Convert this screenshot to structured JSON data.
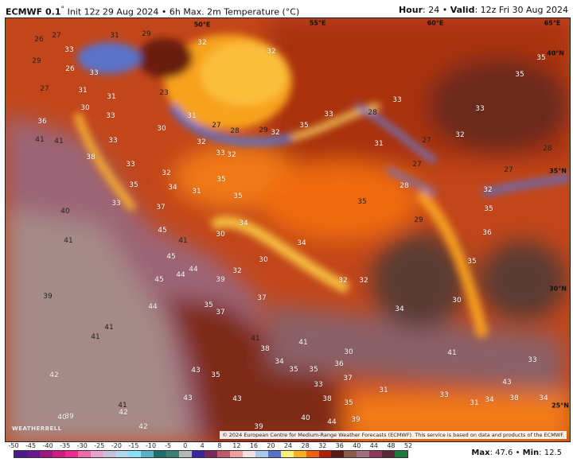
{
  "header": {
    "model": "ECMWF 0.1",
    "degree_mark": "°",
    "init": "Init 12z 29 Aug 2024",
    "separator": "•",
    "product": "6h Max. 2m Temperature (°C)",
    "hour_label": "Hour",
    "hour_value": ": 24",
    "valid_label": "Valid",
    "valid_value": ": 12z Fri 30 Aug 2024"
  },
  "map": {
    "graticule": [
      "50°E",
      "55°E",
      "60°E",
      "65°E",
      "40°N",
      "35°N",
      "30°N",
      "25°N"
    ],
    "temperature_labels": [
      "26",
      "27",
      "31",
      "29",
      "32",
      "32",
      "33",
      "29",
      "26",
      "33",
      "27",
      "23",
      "31",
      "31",
      "30",
      "33",
      "31",
      "36",
      "30",
      "27",
      "28",
      "29",
      "32",
      "41",
      "41",
      "33",
      "32",
      "38",
      "33",
      "33",
      "32",
      "32",
      "35",
      "34",
      "31",
      "35",
      "35",
      "33",
      "37",
      "40",
      "35",
      "35",
      "33",
      "33",
      "33",
      "28",
      "35",
      "31",
      "32",
      "27",
      "27",
      "28",
      "27",
      "32",
      "28",
      "35",
      "35",
      "29",
      "45",
      "41",
      "41",
      "45",
      "44",
      "44",
      "45",
      "39",
      "34",
      "30",
      "30",
      "32",
      "37",
      "39",
      "44",
      "35",
      "37",
      "41",
      "41",
      "41",
      "38",
      "34",
      "43",
      "35",
      "42",
      "43",
      "43",
      "41",
      "42",
      "40",
      "39",
      "42",
      "39",
      "36",
      "34",
      "35",
      "32",
      "32",
      "30",
      "34",
      "41",
      "41",
      "30",
      "36",
      "35",
      "35",
      "33",
      "33",
      "37",
      "43",
      "31",
      "33",
      "38",
      "35",
      "34",
      "31",
      "38",
      "34",
      "40",
      "44",
      "39"
    ],
    "copyright": "© 2024 European Centre for Medium-Range Weather Forecasts (ECMWF). This service is based on data and products of the ECMWF.",
    "logo": "WEATHERBELL",
    "region_colors": {
      "caspian": "#f7a21a",
      "plateau": "#e8561a",
      "hot_desert": "#9c6577",
      "gulf": "#7e2a16",
      "arabian_sea": "#f27c12",
      "cool_mountains": "#5a72c8",
      "northeast": "#a9300c"
    }
  },
  "colorbar": {
    "ticks": [
      "-50",
      "-45",
      "-40",
      "-35",
      "-30",
      "-25",
      "-20",
      "-15",
      "-10",
      "-5",
      "0",
      "4",
      "8",
      "12",
      "16",
      "20",
      "24",
      "28",
      "32",
      "36",
      "40",
      "44",
      "48",
      "52"
    ],
    "colors": [
      "#4b1a8c",
      "#6a1690",
      "#a2157f",
      "#d21a84",
      "#ee2a8e",
      "#f06aa8",
      "#e7a2cc",
      "#c8c0d8",
      "#b2d8ec",
      "#8ce0f4",
      "#5ab0c8",
      "#1f6e6a",
      "#3a7e74",
      "#b0b8b8",
      "#3a24a0",
      "#7a2a5a",
      "#c05a6a",
      "#e8a0a0",
      "#f0e0e0",
      "#a8c8e8",
      "#5870c8",
      "#f5f07a",
      "#f8b020",
      "#f06010",
      "#b02008",
      "#5a1a1a",
      "#8a5a4a",
      "#a07080",
      "#8a3a58",
      "#5a2a3a",
      "#1e7a3e"
    ],
    "max_label": "Max",
    "max_value": ": 47.6",
    "min_label": "Min",
    "min_value": ": 12.5"
  }
}
